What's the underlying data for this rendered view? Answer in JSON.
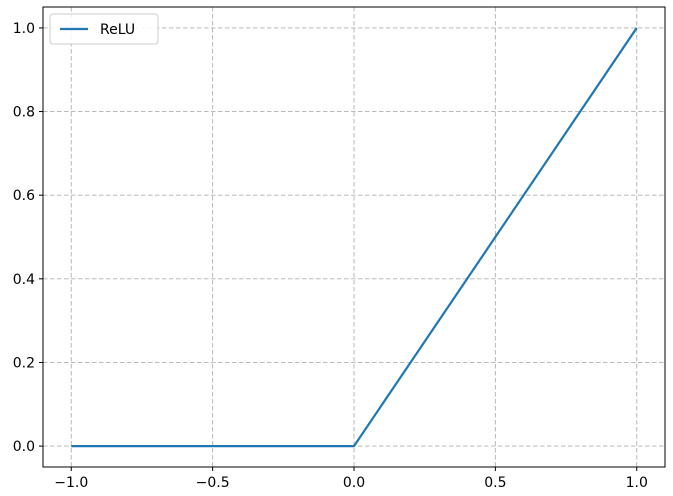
{
  "chart_data": {
    "type": "line",
    "title": "",
    "xlabel": "",
    "ylabel": "",
    "xlim": [
      -1.1,
      1.1
    ],
    "ylim": [
      -0.05,
      1.05
    ],
    "grid": true,
    "legend_position": "top-left",
    "x_ticks": [
      -1.0,
      -0.5,
      0.0,
      0.5,
      1.0
    ],
    "x_tick_labels": [
      "−1.0",
      "−0.5",
      "0.0",
      "0.5",
      "1.0"
    ],
    "y_ticks": [
      0.0,
      0.2,
      0.4,
      0.6,
      0.8,
      1.0
    ],
    "y_tick_labels": [
      "0.0",
      "0.2",
      "0.4",
      "0.6",
      "0.8",
      "1.0"
    ],
    "series": [
      {
        "name": "ReLU",
        "color": "#1f77b4",
        "x": [
          -1.0,
          -0.5,
          0.0,
          0.02,
          0.5,
          1.0
        ],
        "y": [
          0.0,
          0.0,
          0.0,
          0.02,
          0.5,
          1.0
        ]
      }
    ]
  }
}
